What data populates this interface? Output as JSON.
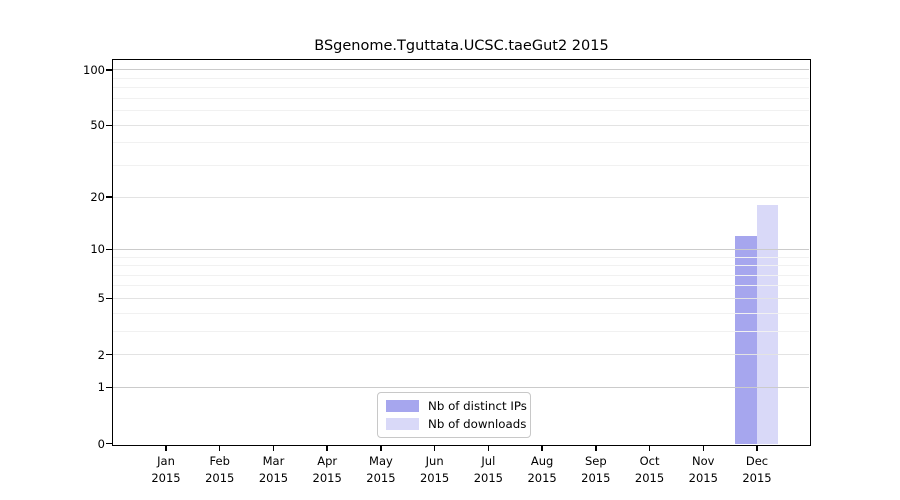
{
  "chart_data": {
    "type": "bar",
    "title": "BSgenome.Tguttata.UCSC.taeGut2 2015",
    "categories": [
      "Jan 2015",
      "Feb 2015",
      "Mar 2015",
      "Apr 2015",
      "May 2015",
      "Jun 2015",
      "Jul 2015",
      "Aug 2015",
      "Sep 2015",
      "Oct 2015",
      "Nov 2015",
      "Dec 2015"
    ],
    "x_months": [
      "Jan",
      "Feb",
      "Mar",
      "Apr",
      "May",
      "Jun",
      "Jul",
      "Aug",
      "Sep",
      "Oct",
      "Nov",
      "Dec"
    ],
    "x_year": "2015",
    "series": [
      {
        "name": "Nb of distinct IPs",
        "color": "#a6a6ee",
        "values": [
          0,
          0,
          0,
          0,
          0,
          0,
          0,
          0,
          0,
          0,
          0,
          12
        ]
      },
      {
        "name": "Nb of downloads",
        "color": "#d9d9f8",
        "values": [
          0,
          0,
          0,
          0,
          0,
          0,
          0,
          0,
          0,
          0,
          0,
          18
        ]
      }
    ],
    "xlabel": "",
    "ylabel": "",
    "y_scale": "log10(1+x)",
    "ylim": [
      0,
      112
    ],
    "y_ticks": [
      0,
      1,
      2,
      5,
      10,
      20,
      50,
      100
    ],
    "y_emphasis_gridlines": [
      1,
      10,
      100
    ],
    "y_mid_gridlines": [
      2,
      5,
      20,
      50
    ],
    "y_minor_gridlines": [
      3,
      4,
      6,
      7,
      8,
      9,
      30,
      40,
      60,
      70,
      80,
      90
    ],
    "grid": true,
    "legend_position": "lower center"
  },
  "colors": {
    "axis": "#000000",
    "grid_emphasis": "#cbcbcb",
    "grid_mid": "#e3e3e3",
    "grid_minor": "#f1f1f1",
    "legend_border": "#c8c8c8",
    "background": "#ffffff"
  }
}
